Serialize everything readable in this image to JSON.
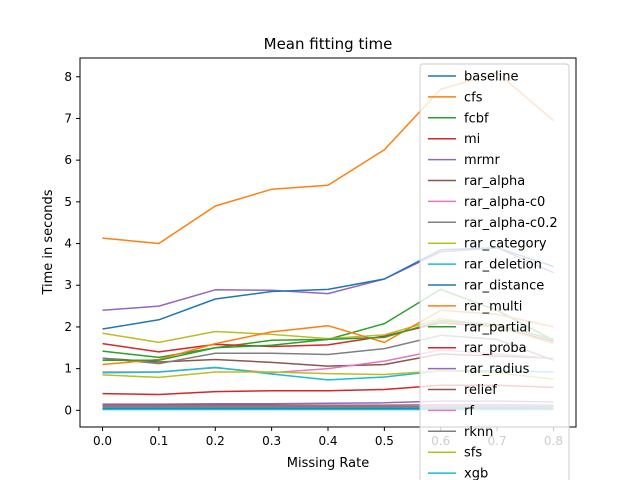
{
  "chart_data": {
    "type": "line",
    "title": "Mean fitting time",
    "xlabel": "Missing Rate",
    "ylabel": "Time in seconds",
    "x": [
      0.0,
      0.1,
      0.2,
      0.3,
      0.4,
      0.5,
      0.6,
      0.7,
      0.8
    ],
    "xticks": [
      "0.0",
      "0.1",
      "0.2",
      "0.3",
      "0.4",
      "0.5",
      "0.6",
      "0.7",
      "0.8"
    ],
    "yticks": [
      "0",
      "1",
      "2",
      "3",
      "4",
      "5",
      "6",
      "7",
      "8"
    ],
    "xlim": [
      -0.04,
      0.84
    ],
    "ylim": [
      -0.4,
      8.45
    ],
    "legend_position": "right",
    "grid": false,
    "series": [
      {
        "name": "baseline",
        "color": "#1f77b4",
        "values": [
          0.05,
          0.05,
          0.05,
          0.05,
          0.05,
          0.05,
          0.05,
          0.05,
          0.05
        ]
      },
      {
        "name": "cfs",
        "color": "#ff7f0e",
        "values": [
          4.13,
          4.0,
          4.9,
          5.3,
          5.4,
          6.25,
          7.7,
          8.1,
          6.95
        ]
      },
      {
        "name": "fcbf",
        "color": "#2ca02c",
        "values": [
          1.42,
          1.27,
          1.5,
          1.68,
          1.7,
          2.08,
          2.9,
          2.4,
          1.68
        ]
      },
      {
        "name": "mi",
        "color": "#d62728",
        "values": [
          1.6,
          1.4,
          1.58,
          1.53,
          1.57,
          1.78,
          2.1,
          2.0,
          1.65
        ]
      },
      {
        "name": "mrmr",
        "color": "#9467bd",
        "values": [
          2.4,
          2.5,
          2.89,
          2.88,
          2.8,
          3.15,
          3.8,
          3.9,
          3.3
        ]
      },
      {
        "name": "rar_alpha",
        "color": "#8c564b",
        "values": [
          1.25,
          1.16,
          1.22,
          1.15,
          1.06,
          1.1,
          1.35,
          1.3,
          1.25
        ]
      },
      {
        "name": "rar_alpha-c0",
        "color": "#e377c2",
        "values": [
          0.92,
          0.92,
          1.02,
          0.9,
          1.0,
          1.18,
          1.45,
          1.35,
          1.25
        ]
      },
      {
        "name": "rar_alpha-c0.2",
        "color": "#7f7f7f",
        "values": [
          1.25,
          1.12,
          1.37,
          1.37,
          1.34,
          1.48,
          1.8,
          1.7,
          1.2
        ]
      },
      {
        "name": "rar_category",
        "color": "#bcbd22",
        "values": [
          1.85,
          1.63,
          1.89,
          1.82,
          1.72,
          1.81,
          2.2,
          2.0,
          1.6
        ]
      },
      {
        "name": "rar_deletion",
        "color": "#17becf",
        "values": [
          0.9,
          0.92,
          1.03,
          0.87,
          0.73,
          0.8,
          0.95,
          0.95,
          0.92
        ]
      },
      {
        "name": "rar_distance",
        "color": "#1f77b4",
        "values": [
          1.95,
          2.17,
          2.67,
          2.85,
          2.9,
          3.15,
          3.85,
          3.9,
          3.45
        ]
      },
      {
        "name": "rar_multi",
        "color": "#ff7f0e",
        "values": [
          1.1,
          1.22,
          1.6,
          1.88,
          2.03,
          1.63,
          2.4,
          2.3,
          2.0
        ]
      },
      {
        "name": "rar_partial",
        "color": "#2ca02c",
        "values": [
          1.2,
          1.2,
          1.5,
          1.56,
          1.7,
          1.75,
          2.15,
          2.05,
          1.7
        ]
      },
      {
        "name": "rar_proba",
        "color": "#d62728",
        "values": [
          0.4,
          0.38,
          0.45,
          0.47,
          0.47,
          0.5,
          0.6,
          0.6,
          0.55
        ]
      },
      {
        "name": "rar_radius",
        "color": "#9467bd",
        "values": [
          0.15,
          0.15,
          0.16,
          0.16,
          0.17,
          0.18,
          0.22,
          0.22,
          0.2
        ]
      },
      {
        "name": "relief",
        "color": "#8c564b",
        "values": [
          0.12,
          0.12,
          0.12,
          0.12,
          0.12,
          0.12,
          0.13,
          0.13,
          0.12
        ]
      },
      {
        "name": "rf",
        "color": "#e377c2",
        "values": [
          0.1,
          0.1,
          0.1,
          0.1,
          0.1,
          0.1,
          0.11,
          0.11,
          0.1
        ]
      },
      {
        "name": "rknn",
        "color": "#7f7f7f",
        "values": [
          0.09,
          0.09,
          0.09,
          0.09,
          0.09,
          0.09,
          0.09,
          0.09,
          0.09
        ]
      },
      {
        "name": "sfs",
        "color": "#bcbd22",
        "values": [
          0.85,
          0.79,
          0.92,
          0.92,
          0.88,
          0.86,
          0.95,
          0.9,
          0.75
        ]
      },
      {
        "name": "xgb",
        "color": "#17becf",
        "values": [
          0.02,
          0.02,
          0.02,
          0.02,
          0.02,
          0.02,
          0.02,
          0.02,
          0.02
        ]
      }
    ]
  }
}
